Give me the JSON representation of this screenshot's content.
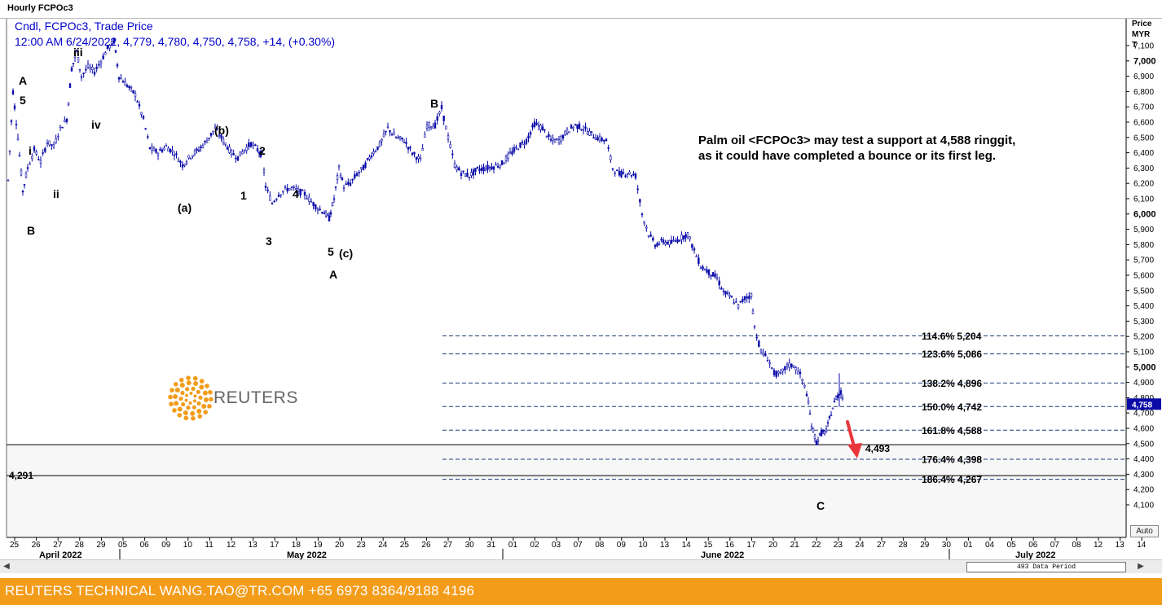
{
  "window": {
    "title": "Hourly FCPOc3"
  },
  "header": {
    "line1": "Cndl, FCPOc3, Trade Price",
    "line2": "12:00 AM 6/24/2022, 4,779, 4,780, 4,750, 4,758, +14, (+0.30%)"
  },
  "price_axis": {
    "title_lines": [
      "Price",
      "MYR",
      "T"
    ],
    "ticks": [
      "7,100",
      "7,000",
      "6,900",
      "6,800",
      "6,700",
      "6,600",
      "6,500",
      "6,400",
      "6,300",
      "6,200",
      "6,100",
      "6,000",
      "5,900",
      "5,800",
      "5,700",
      "5,600",
      "5,500",
      "5,400",
      "5,300",
      "5,200",
      "5,100",
      "5,000",
      "4,900",
      "4,800",
      "4,700",
      "4,600",
      "4,500",
      "4,400",
      "4,300",
      "4,200",
      "4,100"
    ],
    "bold_ticks": [
      "7,000",
      "6,000",
      "5,000"
    ],
    "current_price": "4,758",
    "auto_label": "Auto"
  },
  "time_axis": {
    "days": [
      "25",
      "26",
      "27",
      "28",
      "29",
      "05",
      "06",
      "09",
      "10",
      "11",
      "12",
      "13",
      "17",
      "18",
      "19",
      "20",
      "23",
      "24",
      "25",
      "26",
      "27",
      "30",
      "31",
      "01",
      "02",
      "03",
      "07",
      "08",
      "09",
      "10",
      "13",
      "14",
      "15",
      "16",
      "17",
      "20",
      "21",
      "22",
      "23",
      "24",
      "27",
      "28",
      "29",
      "30",
      "01",
      "04",
      "05",
      "06",
      "07",
      "08",
      "12",
      "13",
      "14"
    ],
    "months": [
      "April 2022",
      "May 2022",
      "June 2022",
      "July 2022"
    ]
  },
  "wave_labels": [
    "A",
    "5",
    "i",
    "ii",
    "iii",
    "iv",
    "B",
    "(b)",
    "(a)",
    "2",
    "1",
    "3",
    "4",
    "5",
    "(c)",
    "A",
    "B",
    "C"
  ],
  "annotation": {
    "lines": [
      "Palm oil <FCPOc3> may test a support at 4,588 ringgit,",
      "as it could have completed a bounce or its first leg."
    ]
  },
  "fib_levels": [
    {
      "label": "114.6% 5,204",
      "price": 5204
    },
    {
      "label": "123.6% 5,086",
      "price": 5086
    },
    {
      "label": "138.2% 4,896",
      "price": 4896
    },
    {
      "label": "150.0% 4,742",
      "price": 4742
    },
    {
      "label": "161.8% 4,588",
      "price": 4588
    },
    {
      "label": "176.4% 4,398",
      "price": 4398
    },
    {
      "label": "186.4% 4,267",
      "price": 4267
    }
  ],
  "support_lines": [
    {
      "label": "4,493",
      "price": 4493
    },
    {
      "label": "4,291",
      "price": 4291
    }
  ],
  "logo": {
    "text": "REUTERS"
  },
  "scrollbar": {
    "status": "493 Data Period"
  },
  "footer": {
    "text": "REUTERS TECHNICAL  WANG.TAO@TR.COM  +65 6973 8364/9188 4196"
  },
  "colors": {
    "candles": "#0a0aa8",
    "accent": "#f39c1a",
    "arrow": "#e8363a",
    "header_text": "#0000cc"
  }
}
